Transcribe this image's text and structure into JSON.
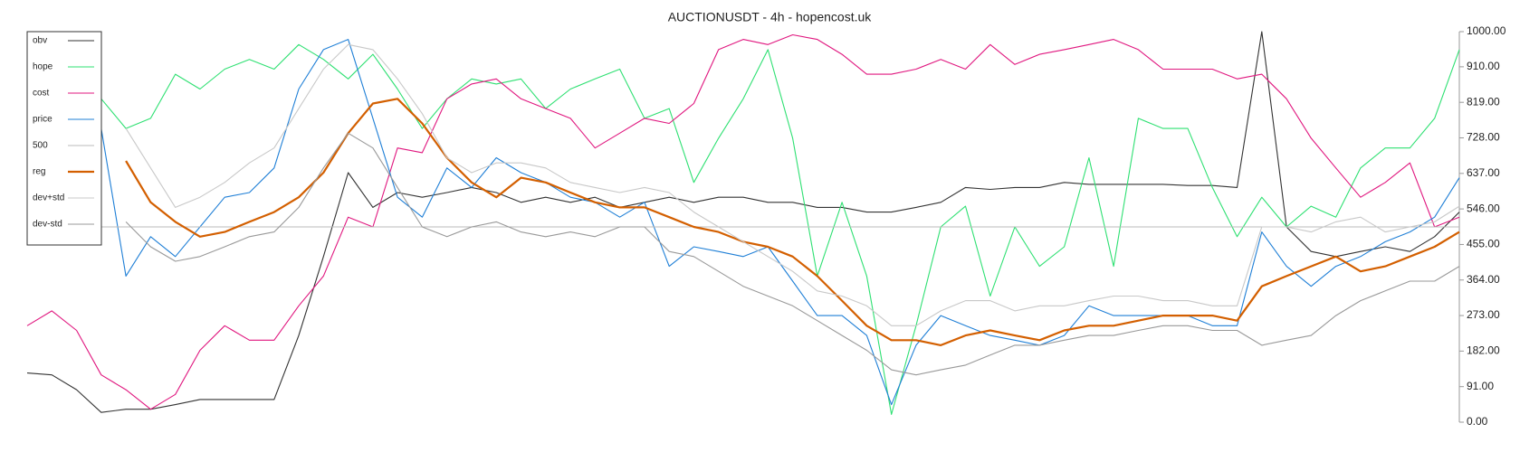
{
  "chart_data": {
    "type": "line",
    "title": "AUCTIONUSDT - 4h - hopencost.uk",
    "ylim": [
      0,
      1000
    ],
    "yticks": [
      {
        "value": 0,
        "label": "0.00"
      },
      {
        "value": 91,
        "label": "91.00"
      },
      {
        "value": 182,
        "label": "182.00"
      },
      {
        "value": 273,
        "label": "273.00"
      },
      {
        "value": 364,
        "label": "364.00"
      },
      {
        "value": 455,
        "label": "455.00"
      },
      {
        "value": 546,
        "label": "546.00"
      },
      {
        "value": 637,
        "label": "637.00"
      },
      {
        "value": 728,
        "label": "728.00"
      },
      {
        "value": 819,
        "label": "819.00"
      },
      {
        "value": 910,
        "label": "910.00"
      },
      {
        "value": 1000,
        "label": "1000.00"
      }
    ],
    "axis_side": "right",
    "legend": "top-left",
    "series": [
      {
        "name": "obv",
        "color": "#333333",
        "values": [
          126,
          121,
          83,
          25,
          33,
          33,
          45,
          58,
          58,
          58,
          58,
          222,
          424,
          639,
          550,
          588,
          576,
          588,
          601,
          588,
          563,
          576,
          563,
          576,
          550,
          563,
          576,
          563,
          576,
          576,
          563,
          563,
          550,
          550,
          538,
          538,
          550,
          563,
          601,
          596,
          601,
          601,
          614,
          609,
          609,
          609,
          609,
          606,
          606,
          601,
          1000,
          500,
          437,
          424,
          437,
          449,
          437,
          475,
          538
        ]
      },
      {
        "name": "hope",
        "color": "#2ee072",
        "values": [
          null,
          null,
          null,
          828,
          752,
          778,
          891,
          853,
          904,
          929,
          904,
          967,
          929,
          879,
          942,
          853,
          752,
          828,
          879,
          866,
          879,
          803,
          853,
          879,
          904,
          778,
          803,
          614,
          727,
          828,
          954,
          727,
          374,
          563,
          374,
          20,
          247,
          500,
          553,
          323,
          500,
          399,
          449,
          677,
          399,
          778,
          752,
          752,
          601,
          475,
          576,
          500,
          553,
          525,
          651,
          702,
          702,
          778,
          954
        ]
      },
      {
        "name": "cost",
        "color": "#e0177f",
        "values": [
          247,
          285,
          235,
          121,
          83,
          33,
          71,
          184,
          247,
          210,
          210,
          298,
          374,
          525,
          500,
          702,
          690,
          828,
          866,
          879,
          828,
          803,
          778,
          702,
          740,
          778,
          765,
          816,
          954,
          980,
          967,
          992,
          980,
          942,
          891,
          891,
          904,
          929,
          904,
          967,
          916,
          942,
          954,
          967,
          980,
          954,
          904,
          904,
          904,
          879,
          891,
          828,
          727,
          651,
          576,
          614,
          664,
          500,
          525
        ]
      },
      {
        "name": "price",
        "color": "#1f7fd6",
        "values": [
          null,
          null,
          null,
          752,
          374,
          475,
          424,
          500,
          576,
          588,
          651,
          853,
          954,
          980,
          778,
          576,
          525,
          651,
          601,
          677,
          639,
          614,
          576,
          563,
          525,
          563,
          399,
          449,
          437,
          424,
          449,
          361,
          273,
          273,
          222,
          45,
          197,
          273,
          247,
          222,
          210,
          197,
          222,
          298,
          273,
          273,
          273,
          273,
          247,
          247,
          487,
          399,
          348,
          399,
          424,
          462,
          487,
          525,
          626
        ]
      },
      {
        "name": "500",
        "color": "#bbbbbb",
        "values": [
          500,
          500,
          500,
          500,
          500,
          500,
          500,
          500,
          500,
          500,
          500,
          500,
          500,
          500,
          500,
          500,
          500,
          500,
          500,
          500,
          500,
          500,
          500,
          500,
          500,
          500,
          500,
          500,
          500,
          500,
          500,
          500,
          500,
          500,
          500,
          500,
          500,
          500,
          500,
          500,
          500,
          500,
          500,
          500,
          500,
          500,
          500,
          500,
          500,
          500,
          500,
          500,
          500,
          500,
          500,
          500,
          500,
          500,
          500
        ]
      },
      {
        "name": "reg",
        "color": "#d35f00",
        "values": [
          null,
          null,
          null,
          null,
          669,
          563,
          513,
          475,
          487,
          513,
          538,
          576,
          639,
          740,
          816,
          828,
          765,
          677,
          614,
          576,
          626,
          614,
          588,
          563,
          550,
          550,
          525,
          500,
          487,
          462,
          449,
          424,
          374,
          311,
          247,
          210,
          210,
          197,
          222,
          235,
          222,
          210,
          235,
          247,
          247,
          260,
          273,
          273,
          273,
          260,
          348,
          374,
          399,
          424,
          386,
          399,
          424,
          449,
          487
        ]
      },
      {
        "name": "dev+std",
        "color": "#c8c8c8",
        "values": [
          null,
          null,
          null,
          null,
          752,
          651,
          550,
          576,
          614,
          664,
          702,
          803,
          904,
          967,
          954,
          879,
          790,
          677,
          639,
          664,
          664,
          651,
          614,
          601,
          588,
          601,
          588,
          538,
          500,
          462,
          424,
          386,
          336,
          323,
          298,
          247,
          247,
          285,
          311,
          311,
          285,
          298,
          298,
          311,
          323,
          323,
          311,
          311,
          298,
          298,
          500,
          500,
          487,
          513,
          525,
          487,
          500,
          513,
          553
        ]
      },
      {
        "name": "dev-std",
        "color": "#999999",
        "values": [
          null,
          null,
          null,
          null,
          513,
          449,
          412,
          424,
          449,
          475,
          487,
          550,
          651,
          740,
          702,
          601,
          500,
          475,
          500,
          513,
          487,
          475,
          487,
          475,
          500,
          500,
          437,
          424,
          386,
          348,
          323,
          298,
          260,
          222,
          184,
          134,
          121,
          134,
          146,
          172,
          197,
          197,
          210,
          222,
          222,
          235,
          247,
          247,
          235,
          235,
          197,
          210,
          222,
          273,
          311,
          336,
          361,
          361,
          399
        ]
      }
    ]
  }
}
